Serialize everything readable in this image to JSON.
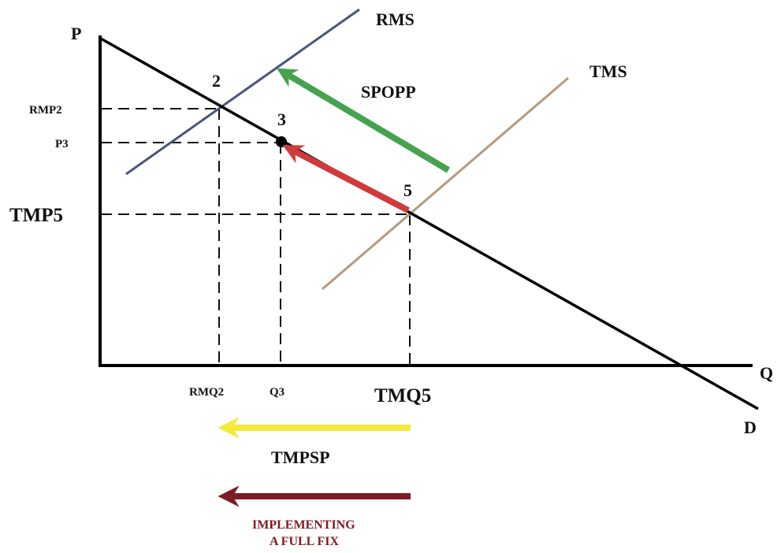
{
  "axes": {
    "price_label": "P",
    "quantity_label": "Q"
  },
  "curves": {
    "demand": {
      "label": "D",
      "color": "#000000"
    },
    "rms": {
      "label": "RMS",
      "color": "#4a5578"
    },
    "tms": {
      "label": "TMS",
      "color": "#b49a7e"
    }
  },
  "points": [
    {
      "id": "2",
      "label": "2"
    },
    {
      "id": "3",
      "label": "3"
    },
    {
      "id": "5",
      "label": "5"
    }
  ],
  "price_levels": {
    "rmp2": "RMP2",
    "p3": "P3",
    "tmp5": "TMP5"
  },
  "quantity_levels": {
    "rmq2": "RMQ2",
    "q3": "Q3",
    "tmq5": "TMQ5"
  },
  "arrows": {
    "spopp": {
      "label": "SPOPP",
      "color": "#46a24f"
    },
    "red": {
      "color": "#d03a3d"
    },
    "tmpsp": {
      "label": "TMPSP",
      "color": "#f3e93a"
    },
    "full_fix": {
      "label_line1": "IMPLEMENTING",
      "label_line2": "A FULL FIX",
      "color": "#7e1c26"
    }
  }
}
